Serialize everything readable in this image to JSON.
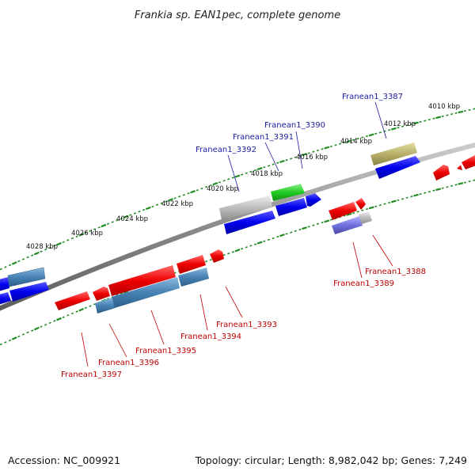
{
  "title": "Frankia sp. EAN1pec, complete genome",
  "accession": "Accession: NC_009921",
  "topology": "Topology: circular; Length: 8,982,042 bp; Genes: 7,249",
  "kbp_labels": [
    "4010 kbp",
    "4012 kbp",
    "4014 kbp",
    "4016 kbp",
    "4018 kbp",
    "4020 kbp",
    "4022 kbp",
    "4024 kbp",
    "4026 kbp",
    "4028 kbp"
  ],
  "genes_top": [
    "Franean1_3387",
    "Franean1_3390",
    "Franean1_3391",
    "Franean1_3392"
  ],
  "genes_bottom": [
    "Franean1_3388",
    "Franean1_3389",
    "Franean1_3393",
    "Franean1_3394",
    "Franean1_3395",
    "Franean1_3396",
    "Franean1_3397"
  ],
  "colors": {
    "red": "#ff0000",
    "blue": "#0000ff",
    "steel": "#4682b4",
    "grey": "#bbbbbb",
    "green": "#22cc22",
    "olive": "#b8b06a",
    "lavender": "#7070dd",
    "tick": "#228b22",
    "backbone": "#888888"
  }
}
